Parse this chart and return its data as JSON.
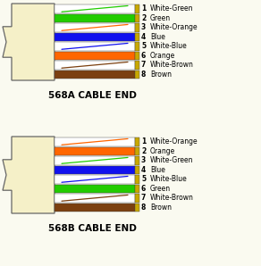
{
  "bg_color": "#FAFAF0",
  "connector_color": "#F5F0C8",
  "connector_outline": "#666666",
  "gold_color": "#C8A800",
  "wire_colors_568A": [
    "white",
    "#22CC00",
    "white",
    "#1111EE",
    "white",
    "#FF6600",
    "white",
    "#7B4010"
  ],
  "wire_stripe_colors_568A": [
    "#22CC00",
    null,
    "#FF6600",
    null,
    "#1111EE",
    null,
    "#7B4010",
    null
  ],
  "wire_colors_568B": [
    "white",
    "#FF6600",
    "white",
    "#1111EE",
    "white",
    "#22CC00",
    "white",
    "#7B4010"
  ],
  "wire_stripe_colors_568B": [
    "#FF6600",
    null,
    "#22CC00",
    null,
    "#1111EE",
    null,
    "#7B4010",
    null
  ],
  "labels_568A": [
    "White-Green",
    "Green",
    "White-Orange",
    "Blue",
    "White-Blue",
    "Orange",
    "White-Brown",
    "Brown"
  ],
  "labels_568B": [
    "White-Orange",
    "Orange",
    "White-Green",
    "Blue",
    "White-Blue",
    "Green",
    "White-Brown",
    "Brown"
  ],
  "title_568A": "568A CABLE END",
  "title_568B": "568B CABLE END",
  "label_color": "#000000",
  "outline_color": "#444444",
  "fig_w": 2.92,
  "fig_h": 2.98,
  "dpi": 100
}
